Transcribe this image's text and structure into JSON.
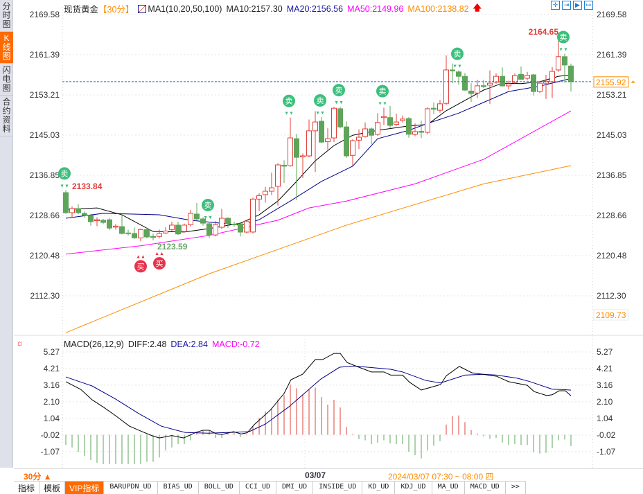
{
  "sidebar": {
    "items": [
      {
        "label": "分时图"
      },
      {
        "label": "K线图",
        "active": true
      },
      {
        "label": "闪电图"
      },
      {
        "label": "合约资料"
      }
    ]
  },
  "header": {
    "symbol": "现货黄金",
    "period": "【30分】",
    "ma_name": "MA1(10,20,50,100)",
    "ma10": "MA10:2157.30",
    "ma20": "MA20:2156.56",
    "ma50": "MA50:2149.96",
    "ma100": "MA100:2138.82",
    "icons": [
      "crosshair-icon",
      "zoom-in-icon",
      "zoom-out-icon",
      "move-right-icon"
    ]
  },
  "colors": {
    "up": "#e0403a",
    "down": "#5ea45a",
    "ma10": "#000000",
    "ma20": "#00008b",
    "ma50": "#ff00ff",
    "ma100": "#ff8c00",
    "sell": "#3cbf7c",
    "buy": "#e8334a",
    "last": "#ff8c00",
    "dash": "#1a6fd4"
  },
  "price_axis": {
    "ticks": [
      "2169.58",
      "2161.39",
      "2153.21",
      "2145.03",
      "2136.85",
      "2128.66",
      "2120.48",
      "2112.30"
    ],
    "last_price": "2155.92",
    "low_visible": "2109.73"
  },
  "labels": {
    "high1": "2133.84",
    "low1": "2123.59",
    "high2": "2164.65",
    "sell": "卖",
    "buy": "买"
  },
  "chart_data": [
    {
      "type": "candlestick",
      "title": "现货黄金 30分",
      "ohlc_fields": [
        "open",
        "close",
        "high",
        "low"
      ],
      "candles": [
        [
          2133.32,
          2129.23,
          2133.84,
          2129.0
        ],
        [
          2129.23,
          2130.07,
          2130.5,
          2128.2
        ],
        [
          2130.07,
          2129.23,
          2131.0,
          2128.9
        ],
        [
          2129.09,
          2128.67,
          2129.5,
          2128.2
        ],
        [
          2128.67,
          2127.4,
          2129.0,
          2126.6
        ],
        [
          2127.6,
          2127.8,
          2128.3,
          2126.5
        ],
        [
          2127.7,
          2127.25,
          2128.0,
          2126.9
        ],
        [
          2127.8,
          2126.1,
          2128.1,
          2125.7
        ],
        [
          2126.3,
          2126.5,
          2126.9,
          2125.8
        ],
        [
          2126.4,
          2125.0,
          2129.0,
          2124.8
        ],
        [
          2125.1,
          2125.0,
          2125.8,
          2124.6
        ],
        [
          2125.0,
          2124.1,
          2126.2,
          2123.9
        ],
        [
          2124.1,
          2125.8,
          2126.0,
          2123.4
        ],
        [
          2125.8,
          2124.3,
          2126.2,
          2124.0
        ],
        [
          2124.4,
          2124.2,
          2125.0,
          2123.59
        ],
        [
          2124.4,
          2125.0,
          2125.8,
          2124.0
        ],
        [
          2125.1,
          2125.5,
          2126.3,
          2124.9
        ],
        [
          2125.8,
          2126.7,
          2127.4,
          2125.4
        ],
        [
          2126.7,
          2124.9,
          2127.4,
          2124.7
        ],
        [
          2125.4,
          2126.7,
          2127.0,
          2125.2
        ],
        [
          2126.8,
          2129.1,
          2129.8,
          2126.4
        ],
        [
          2128.95,
          2127.96,
          2131.2,
          2127.6
        ],
        [
          2127.96,
          2127.1,
          2128.3,
          2126.6
        ],
        [
          2126.97,
          2124.7,
          2127.4,
          2124.1
        ],
        [
          2124.7,
          2126.8,
          2127.5,
          2124.4
        ],
        [
          2126.26,
          2128.1,
          2130.0,
          2125.9
        ],
        [
          2128.1,
          2126.97,
          2128.3,
          2126.1
        ],
        [
          2126.9,
          2126.8,
          2127.4,
          2126.4
        ],
        [
          2126.97,
          2125.28,
          2127.3,
          2124.4
        ],
        [
          2125.28,
          2127.5,
          2127.7,
          2125.0
        ],
        [
          2125.3,
          2132.0,
          2132.3,
          2125.0
        ],
        [
          2132.0,
          2132.7,
          2133.2,
          2129.6
        ],
        [
          2132.9,
          2133.6,
          2134.5,
          2131.3
        ],
        [
          2133.6,
          2134.3,
          2137.4,
          2132.8
        ],
        [
          2134.6,
          2138.96,
          2139.3,
          2130.7
        ],
        [
          2138.9,
          2138.7,
          2139.9,
          2135.3
        ],
        [
          2138.8,
          2144.46,
          2148.6,
          2138.6
        ],
        [
          2144.3,
          2140.5,
          2145.3,
          2131.8
        ],
        [
          2140.6,
          2140.8,
          2141.3,
          2136.3
        ],
        [
          2140.8,
          2145.9,
          2148.2,
          2140.5
        ],
        [
          2145.9,
          2147.7,
          2149.9,
          2137.5
        ],
        [
          2147.85,
          2143.6,
          2148.7,
          2143.4
        ],
        [
          2143.7,
          2144.3,
          2146.4,
          2142.1
        ],
        [
          2144.46,
          2150.5,
          2150.8,
          2143.6
        ],
        [
          2150.4,
          2146.7,
          2150.8,
          2146.4
        ],
        [
          2146.7,
          2140.8,
          2147.8,
          2140.4
        ],
        [
          2140.9,
          2143.9,
          2144.2,
          2138.8
        ],
        [
          2144.0,
          2144.6,
          2146.2,
          2142.2
        ],
        [
          2144.74,
          2146.3,
          2147.6,
          2144.5
        ],
        [
          2146.3,
          2145.0,
          2146.6,
          2143.2
        ],
        [
          2145.2,
          2147.6,
          2149.5,
          2144.9
        ],
        [
          2148.6,
          2148.8,
          2150.6,
          2147.1
        ],
        [
          2148.6,
          2147.0,
          2151.0,
          2146.4
        ],
        [
          2147.2,
          2147.7,
          2149.4,
          2146.9
        ],
        [
          2148.0,
          2148.3,
          2149.0,
          2147.6
        ],
        [
          2148.4,
          2145.2,
          2148.7,
          2144.5
        ],
        [
          2145.2,
          2145.74,
          2147.4,
          2144.8
        ],
        [
          2145.8,
          2145.6,
          2148.0,
          2144.4
        ],
        [
          2145.6,
          2150.4,
          2150.7,
          2145.2
        ],
        [
          2150.5,
          2150.3,
          2151.7,
          2149.3
        ],
        [
          2150.1,
          2151.4,
          2152.2,
          2149.6
        ],
        [
          2151.5,
          2158.3,
          2161.25,
          2151.2
        ],
        [
          2158.3,
          2158.1,
          2159.6,
          2155.6
        ],
        [
          2157.9,
          2157.0,
          2158.2,
          2155.3
        ],
        [
          2157.0,
          2154.2,
          2157.7,
          2154.0
        ],
        [
          2154.0,
          2153.5,
          2155.6,
          2151.8
        ],
        [
          2153.6,
          2155.07,
          2156.3,
          2152.6
        ],
        [
          2155.1,
          2154.9,
          2156.3,
          2154.6
        ],
        [
          2155.2,
          2155.6,
          2158.2,
          2151.4
        ],
        [
          2155.8,
          2157.0,
          2157.6,
          2155.5
        ],
        [
          2157.0,
          2155.05,
          2158.8,
          2154.9
        ],
        [
          2155.05,
          2155.47,
          2156.1,
          2154.3
        ],
        [
          2155.75,
          2157.16,
          2157.6,
          2155.5
        ],
        [
          2157.4,
          2156.4,
          2159.0,
          2156.3
        ],
        [
          2156.6,
          2157.2,
          2157.9,
          2156.2
        ],
        [
          2157.3,
          2153.9,
          2157.5,
          2153.1
        ],
        [
          2153.9,
          2155.6,
          2155.9,
          2153.6
        ],
        [
          2155.6,
          2156.0,
          2157.3,
          2152.4
        ],
        [
          2155.9,
          2158.0,
          2158.9,
          2152.6
        ],
        [
          2158.3,
          2161.0,
          2164.65,
          2157.9
        ],
        [
          2161.0,
          2159.3,
          2161.6,
          2155.7
        ],
        [
          2159.1,
          2155.92,
          2159.6,
          2153.9
        ]
      ],
      "ma_lines": {
        "MA10": [
          [
            0,
            2129.9
          ],
          [
            5,
            2130.2
          ],
          [
            9,
            2128.8
          ],
          [
            14,
            2125.4
          ],
          [
            19,
            2125.3
          ],
          [
            23,
            2126.0
          ],
          [
            28,
            2127.1
          ],
          [
            31,
            2128.8
          ],
          [
            34,
            2131.6
          ],
          [
            37,
            2135.6
          ],
          [
            40,
            2139.8
          ],
          [
            43,
            2142.9
          ],
          [
            46,
            2145.0
          ],
          [
            50,
            2146.0
          ],
          [
            55,
            2146.9
          ],
          [
            58,
            2147.2
          ],
          [
            61,
            2150.0
          ],
          [
            64,
            2152.1
          ],
          [
            67,
            2154.2
          ],
          [
            70,
            2155.6
          ],
          [
            73,
            2155.5
          ],
          [
            76,
            2155.9
          ],
          [
            79,
            2157.0
          ],
          [
            81,
            2157.3
          ]
        ],
        "MA20": [
          [
            0,
            2128.1
          ],
          [
            6,
            2129.1
          ],
          [
            15,
            2128.8
          ],
          [
            20,
            2127.7
          ],
          [
            28,
            2126.7
          ],
          [
            31,
            2127.8
          ],
          [
            36,
            2131.6
          ],
          [
            41,
            2135.6
          ],
          [
            46,
            2138.7
          ],
          [
            50,
            2144.3
          ],
          [
            55,
            2146.0
          ],
          [
            58,
            2147.4
          ],
          [
            63,
            2149.5
          ],
          [
            67,
            2151.7
          ],
          [
            71,
            2153.9
          ],
          [
            76,
            2155.0
          ],
          [
            81,
            2156.56
          ]
        ],
        "MA50": [
          [
            0,
            2120.8
          ],
          [
            12,
            2122.5
          ],
          [
            23,
            2124.6
          ],
          [
            34,
            2127.7
          ],
          [
            39,
            2130.2
          ],
          [
            45,
            2131.6
          ],
          [
            56,
            2135.1
          ],
          [
            67,
            2140.1
          ],
          [
            81,
            2149.96
          ]
        ],
        "MA100": [
          [
            0,
            2104.8
          ],
          [
            23,
            2116.8
          ],
          [
            45,
            2126.7
          ],
          [
            67,
            2135.1
          ],
          [
            81,
            2138.82
          ]
        ]
      },
      "signals": {
        "sell": [
          0,
          23,
          36,
          41,
          44,
          51,
          63,
          80
        ],
        "buy": [
          12,
          15
        ]
      },
      "ylim": [
        2109.73,
        2169.58
      ]
    },
    {
      "type": "macd",
      "title": "MACD(26,12,9)",
      "ylim": [
        -1.6,
        5.4
      ],
      "ticks": [
        "5.27",
        "4.21",
        "3.16",
        "2.10",
        "1.04",
        "-0.02",
        "-1.07"
      ],
      "histogram": [
        -0.64,
        -0.81,
        -1.08,
        -1.34,
        -1.61,
        -1.78,
        -1.87,
        -1.87,
        -1.87,
        -1.87,
        -1.87,
        -1.87,
        -1.87,
        -1.72,
        -1.72,
        -1.45,
        -1.0,
        -0.8,
        -0.6,
        -0.6,
        -0.35,
        0.15,
        0.25,
        0.25,
        -0.2,
        -0.2,
        0.1,
        0.1,
        -0.15,
        0.05,
        0.55,
        1.08,
        1.48,
        1.69,
        2.24,
        2.52,
        3.2,
        2.96,
        2.58,
        2.87,
        3.0,
        2.4,
        1.92,
        2.23,
        1.74,
        0.5,
        0.05,
        -0.28,
        -0.35,
        -0.6,
        -0.5,
        -0.35,
        -0.55,
        -0.6,
        -0.6,
        -1.08,
        -1.3,
        -1.5,
        -1.0,
        -0.7,
        -0.4,
        0.65,
        1.2,
        1.23,
        0.8,
        0.3,
        0.08,
        -0.1,
        -0.25,
        -0.2,
        -0.5,
        -0.65,
        -0.6,
        -0.65,
        -0.65,
        -1.1,
        -1.2,
        -1.15,
        -0.85,
        -0.35,
        -0.3,
        -0.72
      ],
      "diff": [
        [
          0,
          3.38
        ],
        [
          2.4,
          2.89
        ],
        [
          4.2,
          2.23
        ],
        [
          6.1,
          1.74
        ],
        [
          8,
          1.21
        ],
        [
          10.2,
          0.55
        ],
        [
          12,
          0.24
        ],
        [
          13.9,
          -0.07
        ],
        [
          15,
          -0.2
        ],
        [
          17,
          -0.05
        ],
        [
          18.9,
          -0.2
        ],
        [
          20.9,
          0.16
        ],
        [
          22,
          0.29
        ],
        [
          23,
          0.29
        ],
        [
          24.1,
          0.07
        ],
        [
          25,
          0.02
        ],
        [
          26.9,
          0.2
        ],
        [
          28.1,
          0.05
        ],
        [
          29.1,
          0.13
        ],
        [
          30.2,
          0.64
        ],
        [
          32.8,
          1.57
        ],
        [
          35,
          2.63
        ],
        [
          36.1,
          3.5
        ],
        [
          38,
          3.86
        ],
        [
          40,
          4.79
        ],
        [
          41.2,
          4.79
        ],
        [
          43,
          5.18
        ],
        [
          44,
          5.18
        ],
        [
          45.1,
          4.6
        ],
        [
          47,
          4.3
        ],
        [
          49,
          4.0
        ],
        [
          51,
          4.0
        ],
        [
          52.1,
          3.8
        ],
        [
          54,
          3.8
        ],
        [
          55.1,
          3.35
        ],
        [
          57,
          2.85
        ],
        [
          60.1,
          3.2
        ],
        [
          61,
          3.75
        ],
        [
          63.1,
          4.35
        ],
        [
          65.1,
          3.95
        ],
        [
          66.9,
          3.85
        ],
        [
          69.1,
          3.72
        ],
        [
          71,
          3.38
        ],
        [
          74,
          3.15
        ],
        [
          75.1,
          2.75
        ],
        [
          77.1,
          2.5
        ],
        [
          78,
          2.55
        ],
        [
          79.1,
          2.8
        ],
        [
          80.1,
          2.8
        ],
        [
          81,
          2.48
        ]
      ],
      "dea": [
        [
          0,
          3.68
        ],
        [
          4.2,
          3.11
        ],
        [
          8,
          2.27
        ],
        [
          11.7,
          1.35
        ],
        [
          15.3,
          0.55
        ],
        [
          19.1,
          0.15
        ],
        [
          22.8,
          0.1
        ],
        [
          26.4,
          0.15
        ],
        [
          29.4,
          0.2
        ],
        [
          32,
          0.68
        ],
        [
          35.8,
          1.79
        ],
        [
          40.9,
          3.55
        ],
        [
          43.9,
          4.3
        ],
        [
          46.2,
          4.38
        ],
        [
          52.1,
          4.17
        ],
        [
          54,
          4.0
        ],
        [
          57.7,
          3.46
        ],
        [
          60.1,
          3.3
        ],
        [
          64,
          3.8
        ],
        [
          66.9,
          3.85
        ],
        [
          69.1,
          3.8
        ],
        [
          72.4,
          3.6
        ],
        [
          74.3,
          3.4
        ],
        [
          78,
          2.9
        ],
        [
          80.1,
          2.87
        ],
        [
          81,
          2.84
        ]
      ],
      "header": {
        "name": "MACD(26,12,9)",
        "diff": "DIFF:2.48",
        "dea": "DEA:2.84",
        "macd": "MACD:-0.72"
      }
    }
  ],
  "footer": {
    "period": "30分 ▲",
    "date": "03/07",
    "cursor": "2024/03/07 07:30 ~ 08:00 四"
  },
  "tabs": [
    {
      "label": "指标",
      "cn": true
    },
    {
      "label": "模板",
      "cn": true
    },
    {
      "label": "VIP指标",
      "cn": true,
      "vip": true
    },
    {
      "label": "BARUPDN_UD"
    },
    {
      "label": "BIAS_UD"
    },
    {
      "label": "BOLL_UD"
    },
    {
      "label": "CCI_UD"
    },
    {
      "label": "DMI_UD"
    },
    {
      "label": "INSIDE_UD"
    },
    {
      "label": "KD_UD"
    },
    {
      "label": "KDJ_UD"
    },
    {
      "label": "MA_UD"
    },
    {
      "label": "MACD_UD"
    },
    {
      "label": ">>"
    }
  ]
}
